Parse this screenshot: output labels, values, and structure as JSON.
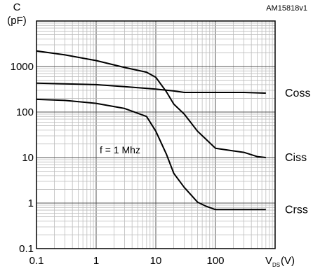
{
  "figure_code": "AM15818v1",
  "chart_data": {
    "type": "line",
    "ylabel": {
      "line1": "C",
      "line2": "(pF)"
    },
    "xlabel": {
      "main": "V",
      "sub": "DS",
      "unit": "(V)"
    },
    "x_scale": "log",
    "y_scale": "log",
    "xlim": [
      0.1,
      1000
    ],
    "ylim": [
      0.1,
      10000
    ],
    "x_ticks": [
      {
        "value": 0.1,
        "label": "0.1"
      },
      {
        "value": 1,
        "label": "1"
      },
      {
        "value": 10,
        "label": "10"
      },
      {
        "value": 100,
        "label": "100"
      }
    ],
    "y_ticks": [
      {
        "value": 0.1,
        "label": "0.1"
      },
      {
        "value": 1,
        "label": "1"
      },
      {
        "value": 10,
        "label": "10"
      },
      {
        "value": 100,
        "label": "100"
      },
      {
        "value": 1000,
        "label": "1000"
      }
    ],
    "grid": true,
    "annotation": "f = 1 Mhz",
    "series": [
      {
        "name": "Ciss",
        "points": [
          [
            0.1,
            2200
          ],
          [
            0.3,
            1800
          ],
          [
            1,
            1350
          ],
          [
            3,
            950
          ],
          [
            7,
            750
          ],
          [
            10,
            580
          ],
          [
            15,
            280
          ],
          [
            20,
            150
          ],
          [
            30,
            90
          ],
          [
            50,
            38
          ],
          [
            70,
            25
          ],
          [
            100,
            16
          ],
          [
            200,
            14
          ],
          [
            300,
            13
          ],
          [
            500,
            10.5
          ],
          [
            700,
            10
          ]
        ]
      },
      {
        "name": "Coss",
        "points": [
          [
            0.1,
            430
          ],
          [
            1,
            400
          ],
          [
            3,
            360
          ],
          [
            10,
            320
          ],
          [
            20,
            290
          ],
          [
            30,
            270
          ],
          [
            100,
            270
          ],
          [
            300,
            270
          ],
          [
            700,
            260
          ]
        ]
      },
      {
        "name": "Crss",
        "points": [
          [
            0.1,
            190
          ],
          [
            0.3,
            180
          ],
          [
            1,
            155
          ],
          [
            3,
            120
          ],
          [
            7,
            80
          ],
          [
            10,
            38
          ],
          [
            15,
            12
          ],
          [
            20,
            4.5
          ],
          [
            30,
            2.2
          ],
          [
            50,
            1.05
          ],
          [
            70,
            0.85
          ],
          [
            100,
            0.72
          ],
          [
            300,
            0.72
          ],
          [
            700,
            0.72
          ]
        ]
      }
    ]
  }
}
